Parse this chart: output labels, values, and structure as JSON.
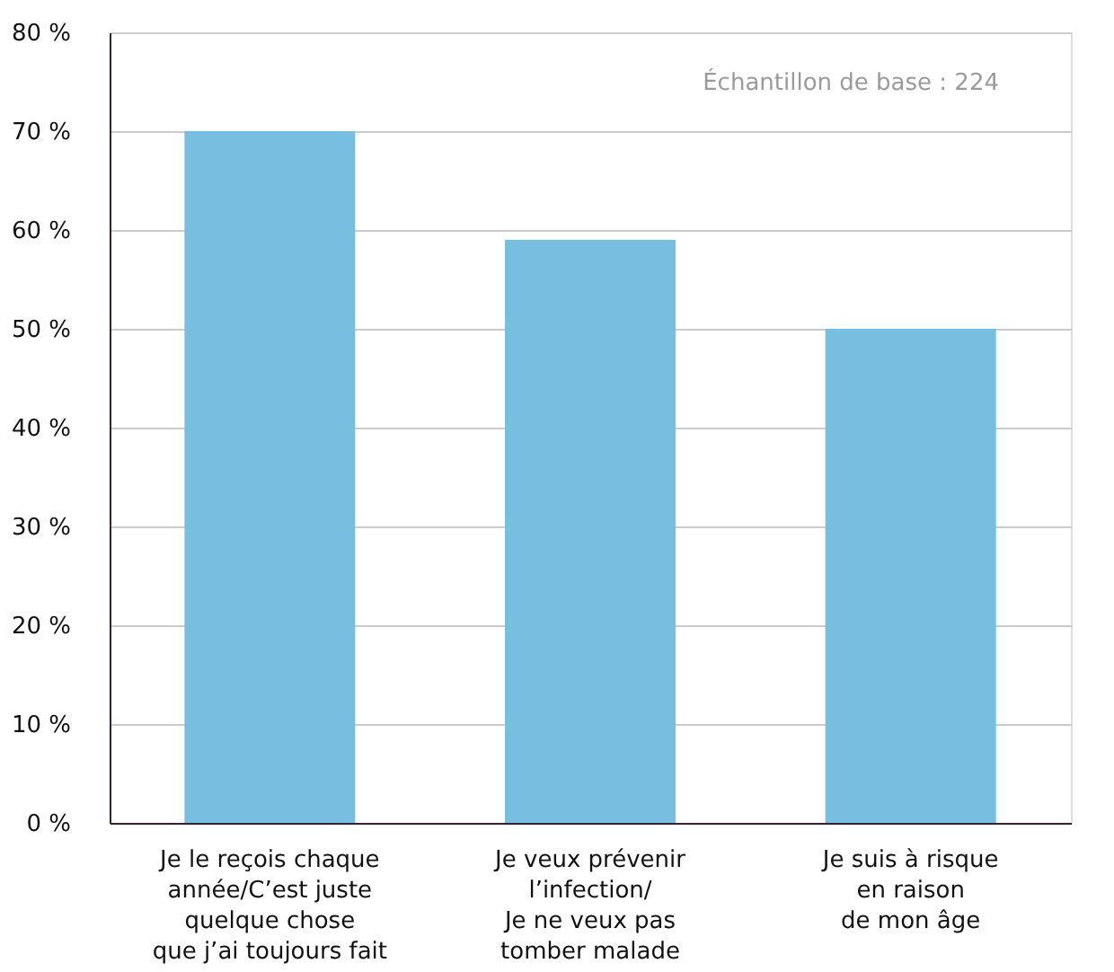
{
  "chart_data": {
    "type": "bar",
    "categories": [
      "Je le reçois chaque\nannée/C’est juste\nquelque chose\nque j’ai toujours fait",
      "Je veux prévenir\nl’infection/\nJe ne veux pas\ntomber malade",
      "Je suis à risque\nen raison\nde mon âge"
    ],
    "values": [
      70,
      59,
      50
    ],
    "color": "#77bee0",
    "ylim": [
      0,
      80
    ],
    "yticks": [
      {
        "value": 0,
        "label": "0 %"
      },
      {
        "value": 10,
        "label": "10 %"
      },
      {
        "value": 20,
        "label": "20 %"
      },
      {
        "value": 30,
        "label": "30 %"
      },
      {
        "value": 40,
        "label": "40 %"
      },
      {
        "value": 50,
        "label": "50 %"
      },
      {
        "value": 60,
        "label": "60 %"
      },
      {
        "value": 70,
        "label": "70 %"
      },
      {
        "value": 80,
        "label": "80 %"
      }
    ],
    "grid": "y",
    "annotations": [
      "Échantillon de base : 224"
    ]
  }
}
